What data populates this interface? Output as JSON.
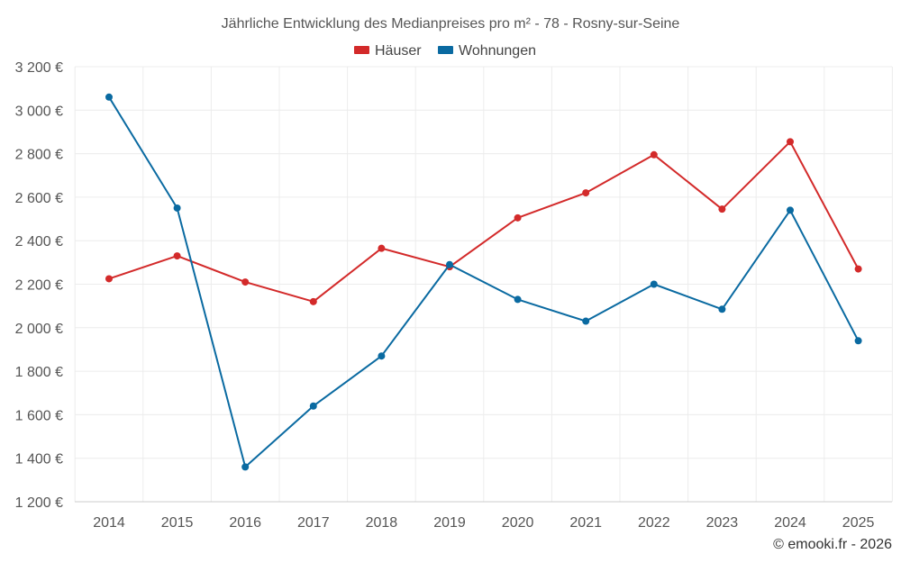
{
  "chart_data": {
    "type": "line",
    "title": "Jährliche Entwicklung des Medianpreises pro m² - 78 - Rosny-sur-Seine",
    "x": [
      "2014",
      "2015",
      "2016",
      "2017",
      "2018",
      "2019",
      "2020",
      "2021",
      "2022",
      "2023",
      "2024",
      "2025"
    ],
    "series": [
      {
        "name": "Häuser",
        "color": "#d32a2a",
        "values": [
          2225,
          2330,
          2210,
          2120,
          2365,
          2280,
          2505,
          2620,
          2795,
          2545,
          2855,
          2270
        ]
      },
      {
        "name": "Wohnungen",
        "color": "#0a6aa1",
        "values": [
          3060,
          2550,
          1360,
          1640,
          1870,
          2290,
          2130,
          2030,
          2200,
          2085,
          2540,
          1940
        ]
      }
    ],
    "ylim": [
      1200,
      3200
    ],
    "yticks": [
      1200,
      1400,
      1600,
      1800,
      2000,
      2200,
      2400,
      2600,
      2800,
      3000,
      3200
    ],
    "ytick_labels": [
      "1 200 €",
      "1 400 €",
      "1 600 €",
      "1 800 €",
      "2 000 €",
      "2 200 €",
      "2 400 €",
      "2 600 €",
      "2 800 €",
      "3 000 €",
      "3 200 €"
    ],
    "xlabel": "",
    "ylabel": "",
    "grid": true,
    "legend_position": "top-center"
  },
  "credit": "© emooki.fr - 2026"
}
